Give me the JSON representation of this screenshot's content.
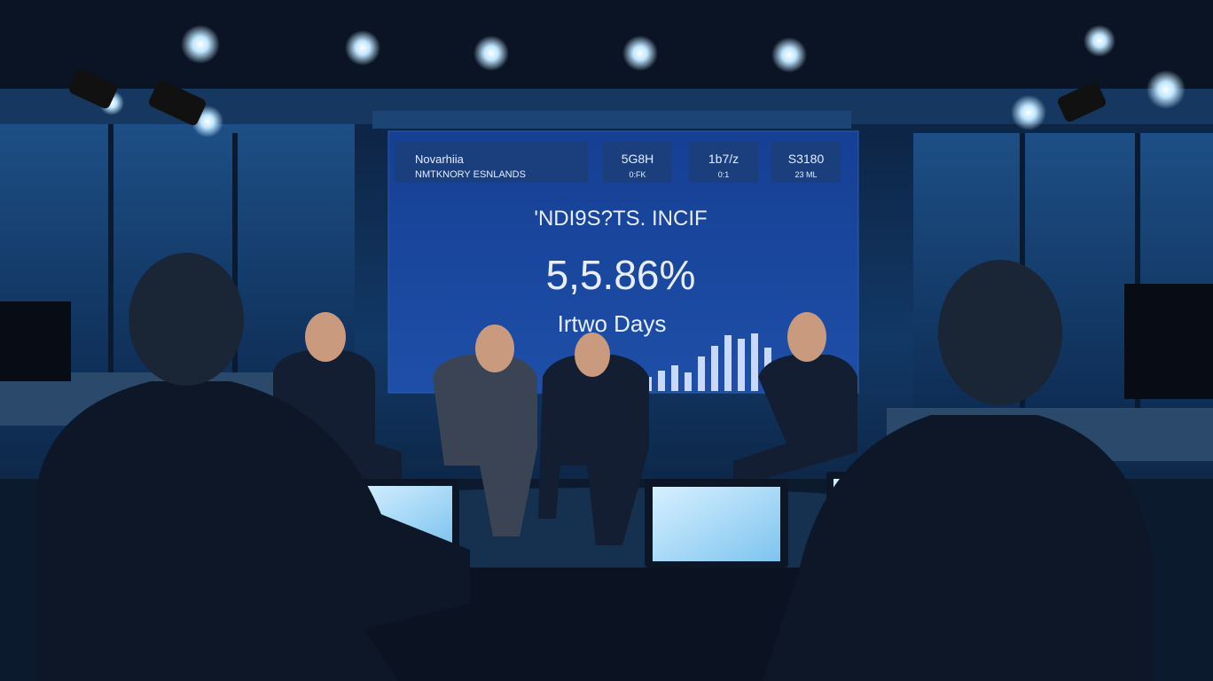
{
  "screen": {
    "brand": "Novarhiia",
    "subtitle": "NMTKNORY ESNLANDS",
    "tickers": [
      {
        "value": "5G8H",
        "label": "0:FK"
      },
      {
        "value": "1b7/z",
        "label": "0:1"
      },
      {
        "value": "S3180",
        "label": "23 ML"
      }
    ],
    "headline": "'NDI9S?TS. INCIF",
    "figure": "5,5.86%",
    "caption": "Irtwo Days"
  }
}
